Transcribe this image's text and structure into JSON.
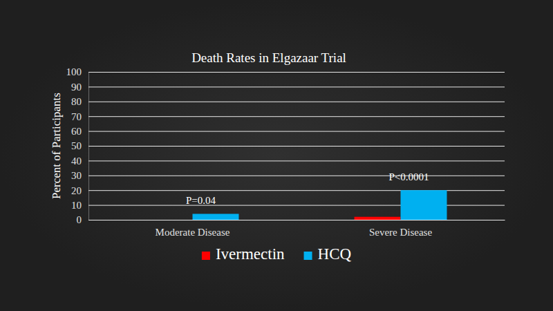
{
  "chart_data": {
    "type": "bar",
    "title": "Death Rates in Elgazaar Trial",
    "y_label": "Percent of Participants",
    "categories": [
      "Moderate Disease",
      "Severe Disease"
    ],
    "series": [
      {
        "name": "Ivermectin",
        "color": "#ff0000",
        "values": [
          0,
          2
        ]
      },
      {
        "name": "HCQ",
        "color": "#00b0f0",
        "values": [
          4,
          20
        ]
      }
    ],
    "annotations": [
      "P=0.04",
      "P<0.0001"
    ],
    "ylim": [
      0,
      100
    ],
    "yticks": [
      0,
      10,
      20,
      30,
      40,
      50,
      60,
      70,
      80,
      90,
      100
    ],
    "grid": true,
    "legend": "bottom"
  }
}
